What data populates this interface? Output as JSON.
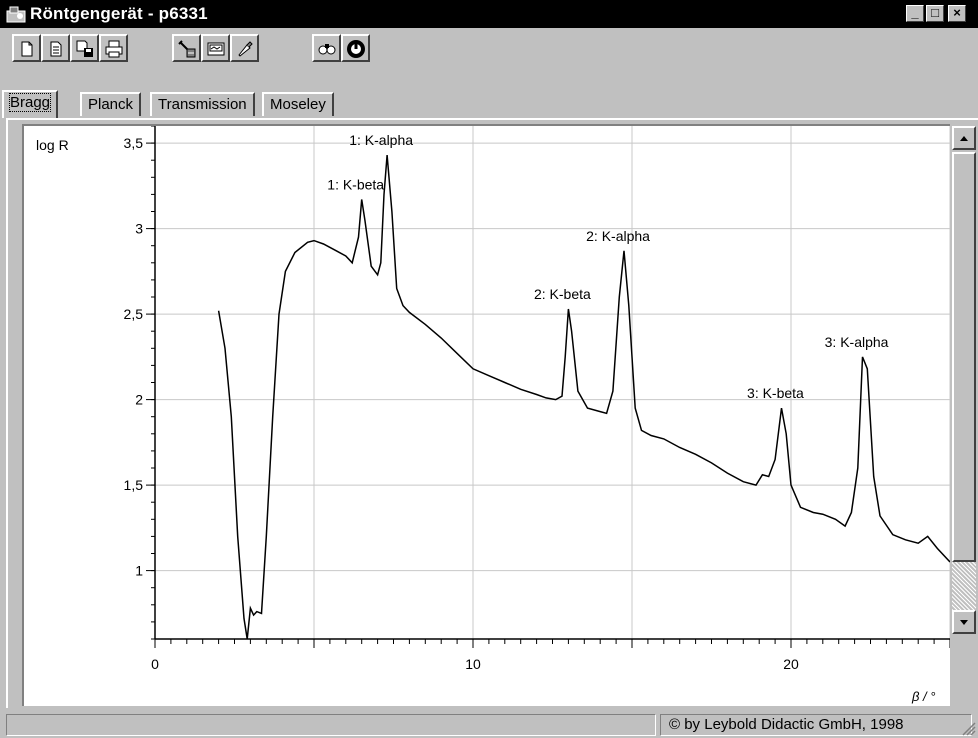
{
  "window": {
    "title": "Röntgengerät - p6331",
    "minimize_label": "_",
    "maximize_label": "□",
    "close_label": "×"
  },
  "toolbar": {
    "buttons": [
      "new-icon",
      "open-icon",
      "save-icon",
      "print-icon",
      "tools-icon",
      "display-icon",
      "marker-icon",
      "find-icon",
      "dial-icon"
    ]
  },
  "tabs": [
    {
      "label": "Bragg",
      "active": true
    },
    {
      "label": "Planck",
      "active": false
    },
    {
      "label": "Transmission",
      "active": false
    },
    {
      "label": "Moseley",
      "active": false
    }
  ],
  "status": {
    "left": "",
    "copyright": "© by Leybold Didactic GmbH, 1998"
  },
  "chart_data": {
    "type": "line",
    "title": "",
    "xlabel": "β / °",
    "ylabel": "log R",
    "xlim": [
      0,
      25
    ],
    "ylim": [
      0.6,
      3.6
    ],
    "xticks": [
      0,
      10,
      20
    ],
    "xtick_labels": [
      "0",
      "10",
      "20"
    ],
    "yticks": [
      1,
      1.5,
      2,
      2.5,
      3,
      3.5
    ],
    "ytick_labels": [
      "1",
      "1,5",
      "2",
      "2,5",
      "3",
      "3,5"
    ],
    "grid": true,
    "legend": "none",
    "series": [
      {
        "values": [
          [
            2.0,
            2.52
          ],
          [
            2.2,
            2.3
          ],
          [
            2.4,
            1.9
          ],
          [
            2.6,
            1.2
          ],
          [
            2.8,
            0.72
          ],
          [
            2.9,
            0.6
          ],
          [
            3.0,
            0.78
          ],
          [
            3.1,
            0.74
          ],
          [
            3.2,
            0.76
          ],
          [
            3.35,
            0.75
          ],
          [
            3.5,
            1.2
          ],
          [
            3.7,
            1.9
          ],
          [
            3.9,
            2.5
          ],
          [
            4.1,
            2.75
          ],
          [
            4.4,
            2.86
          ],
          [
            4.8,
            2.92
          ],
          [
            5.0,
            2.93
          ],
          [
            5.3,
            2.91
          ],
          [
            5.7,
            2.87
          ],
          [
            6.0,
            2.84
          ],
          [
            6.2,
            2.8
          ],
          [
            6.4,
            2.95
          ],
          [
            6.5,
            3.17
          ],
          [
            6.6,
            3.05
          ],
          [
            6.8,
            2.78
          ],
          [
            7.0,
            2.73
          ],
          [
            7.1,
            2.8
          ],
          [
            7.2,
            3.2
          ],
          [
            7.3,
            3.43
          ],
          [
            7.45,
            3.1
          ],
          [
            7.6,
            2.65
          ],
          [
            7.8,
            2.55
          ],
          [
            8.0,
            2.51
          ],
          [
            8.5,
            2.44
          ],
          [
            9.0,
            2.36
          ],
          [
            9.5,
            2.27
          ],
          [
            10.0,
            2.18
          ],
          [
            10.5,
            2.14
          ],
          [
            11.0,
            2.1
          ],
          [
            11.5,
            2.06
          ],
          [
            12.0,
            2.03
          ],
          [
            12.3,
            2.01
          ],
          [
            12.6,
            2.0
          ],
          [
            12.8,
            2.02
          ],
          [
            12.9,
            2.25
          ],
          [
            13.0,
            2.53
          ],
          [
            13.1,
            2.4
          ],
          [
            13.3,
            2.05
          ],
          [
            13.6,
            1.95
          ],
          [
            14.0,
            1.93
          ],
          [
            14.2,
            1.92
          ],
          [
            14.4,
            2.05
          ],
          [
            14.6,
            2.6
          ],
          [
            14.75,
            2.87
          ],
          [
            14.9,
            2.55
          ],
          [
            15.1,
            1.95
          ],
          [
            15.3,
            1.82
          ],
          [
            15.6,
            1.79
          ],
          [
            16.0,
            1.77
          ],
          [
            16.5,
            1.72
          ],
          [
            17.0,
            1.68
          ],
          [
            17.5,
            1.63
          ],
          [
            18.0,
            1.57
          ],
          [
            18.5,
            1.52
          ],
          [
            18.9,
            1.5
          ],
          [
            19.1,
            1.56
          ],
          [
            19.3,
            1.55
          ],
          [
            19.5,
            1.65
          ],
          [
            19.7,
            1.95
          ],
          [
            19.85,
            1.8
          ],
          [
            20.0,
            1.5
          ],
          [
            20.3,
            1.37
          ],
          [
            20.7,
            1.34
          ],
          [
            21.0,
            1.33
          ],
          [
            21.4,
            1.3
          ],
          [
            21.7,
            1.26
          ],
          [
            21.9,
            1.34
          ],
          [
            22.1,
            1.6
          ],
          [
            22.25,
            2.25
          ],
          [
            22.4,
            2.18
          ],
          [
            22.6,
            1.55
          ],
          [
            22.8,
            1.32
          ],
          [
            23.2,
            1.21
          ],
          [
            23.6,
            1.18
          ],
          [
            24.0,
            1.16
          ],
          [
            24.3,
            1.2
          ],
          [
            24.6,
            1.13
          ],
          [
            25.0,
            1.05
          ]
        ]
      }
    ],
    "annotations": [
      {
        "text": "1: K-alpha",
        "x": 7.3,
        "y": 3.43
      },
      {
        "text": "1: K-beta",
        "x": 6.5,
        "y": 3.17
      },
      {
        "text": "2: K-alpha",
        "x": 14.75,
        "y": 2.87
      },
      {
        "text": "2: K-beta",
        "x": 13.0,
        "y": 2.53
      },
      {
        "text": "3: K-alpha",
        "x": 22.25,
        "y": 2.25
      },
      {
        "text": "3: K-beta",
        "x": 19.7,
        "y": 1.95
      }
    ]
  }
}
